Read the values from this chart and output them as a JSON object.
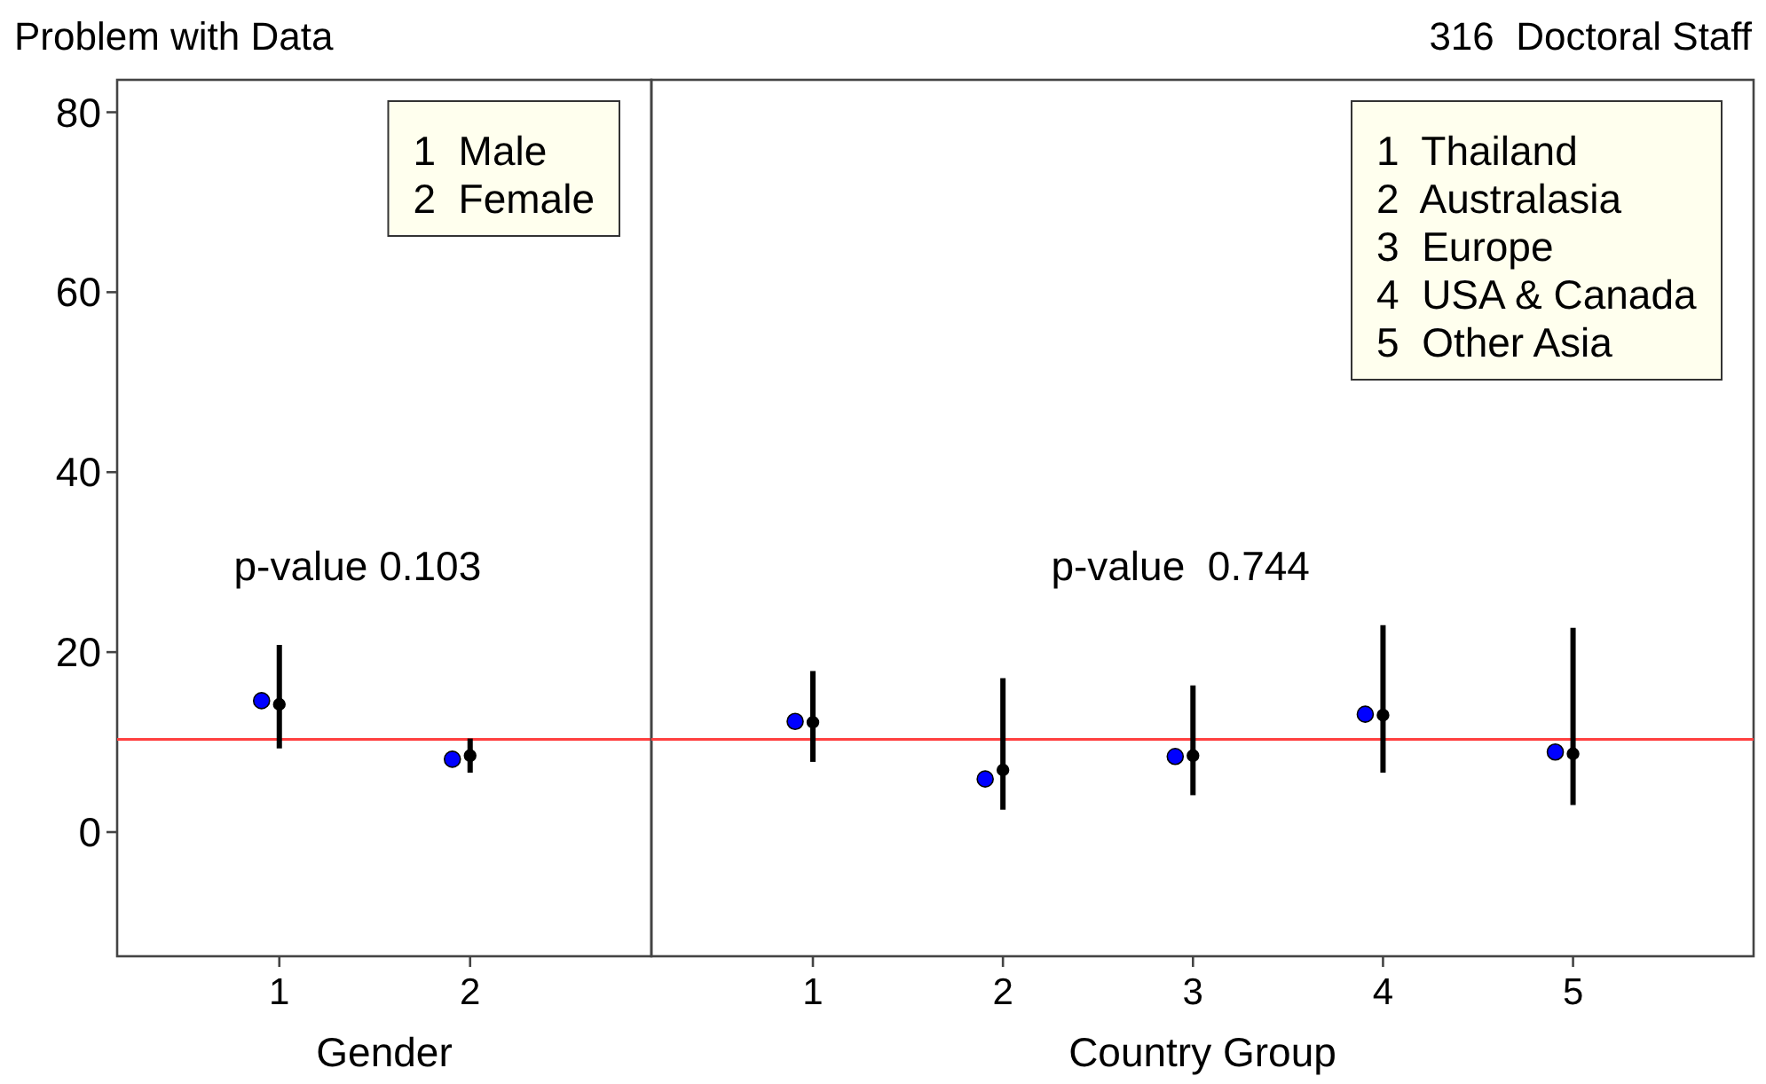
{
  "chart_data": [
    {
      "type": "scatter",
      "title": "Problem with Data",
      "xlabel": "Gender",
      "categories": [
        "1",
        "2"
      ],
      "ylim": [
        -13.8,
        83.6
      ],
      "yticks": [
        0,
        20,
        40,
        60,
        80
      ],
      "marker": "circle",
      "series": [
        {
          "color": "#0000ff",
          "values": [
            14.6,
            8.1
          ]
        },
        {
          "color": "#000000",
          "values": [
            14.2,
            8.5
          ],
          "errors": [
            [
              9.3,
              20.8
            ],
            [
              6.6,
              10.4
            ]
          ]
        }
      ],
      "ref_lines": [
        {
          "axis": "y",
          "value": 10.3,
          "color": "#ff4040"
        }
      ],
      "annotations": [
        "p-value 0.103",
        "1  Male",
        "2  Female"
      ]
    },
    {
      "type": "scatter",
      "title": "316  Doctoral Staff",
      "xlabel": "Country Group",
      "categories": [
        "1",
        "2",
        "3",
        "4",
        "5"
      ],
      "ylim": [
        -13.8,
        83.6
      ],
      "yticks": [
        0,
        20,
        40,
        60,
        80
      ],
      "tick_labels": "x",
      "marker": "circle",
      "series": [
        {
          "color": "#0000ff",
          "values": [
            12.3,
            5.9,
            8.4,
            13.1,
            8.9
          ]
        },
        {
          "color": "#000000",
          "values": [
            12.2,
            6.9,
            8.5,
            13.0,
            8.7
          ],
          "errors": [
            [
              7.8,
              17.9
            ],
            [
              2.5,
              17.1
            ],
            [
              4.1,
              16.3
            ],
            [
              6.6,
              23.0
            ],
            [
              3.0,
              22.7
            ]
          ]
        }
      ],
      "ref_lines": [
        {
          "axis": "y",
          "value": 10.3,
          "color": "#ff4040"
        }
      ],
      "annotations": [
        "p-value  0.744",
        "1  Thailand",
        "2  Australasia",
        "3  Europe",
        "4  USA & Canada",
        "5  Other Asia"
      ]
    }
  ]
}
